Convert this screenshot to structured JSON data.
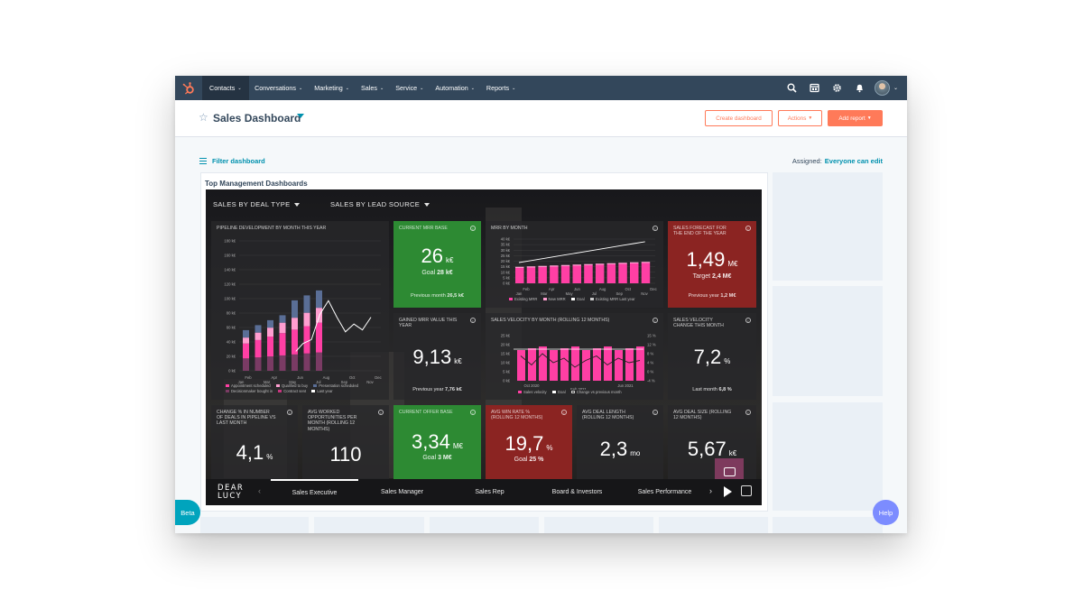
{
  "topnav": {
    "items": [
      {
        "label": "Contacts"
      },
      {
        "label": "Conversations"
      },
      {
        "label": "Marketing"
      },
      {
        "label": "Sales"
      },
      {
        "label": "Service"
      },
      {
        "label": "Automation"
      },
      {
        "label": "Reports"
      }
    ],
    "icons": [
      "search-icon",
      "marketplace-icon",
      "settings-icon",
      "notifications-icon"
    ]
  },
  "header": {
    "title": "Sales Dashboard",
    "create_dashboard": "Create dashboard",
    "actions": "Actions",
    "add_report": "Add report"
  },
  "filter": {
    "label": "Filter dashboard",
    "assigned_label": "Assigned:",
    "assigned_value": "Everyone can edit"
  },
  "panel": {
    "title": "Top Management Dashboards"
  },
  "embed": {
    "dropdown1": "SALES BY DEAL TYPE",
    "dropdown2": "SALES BY LEAD SOURCE",
    "colors": {
      "pink": "#ff3fa4",
      "green": "#2d8a33",
      "red": "#8b2422",
      "blue": "#5a6e96"
    },
    "tiles": {
      "pipeline": {
        "label": "PIPELINE DEVELOPMENT BY MONTH THIS YEAR",
        "y_ticks": [
          "180 k€",
          "160 k€",
          "140 k€",
          "120 k€",
          "100 k€",
          "80 k€",
          "60 k€",
          "40 k€",
          "20 k€",
          "0 k€"
        ],
        "x_ticks": [
          "Feb",
          "Apr",
          "Jun",
          "Aug",
          "Oct",
          "Dec"
        ],
        "x_ticks2": [
          "Jan",
          "Mar",
          "May",
          "Jul",
          "Sep",
          "Nov"
        ],
        "legend": [
          "Appointment scheduled",
          "Qualified to buy",
          "Presentation scheduled",
          "Decisionmaker bought in",
          "Contract sent",
          "Last year"
        ]
      },
      "current_mrr": {
        "label": "CURRENT MRR BASE",
        "value": "26",
        "unit": "k€",
        "goal_label": "Goal",
        "goal": "28 k€",
        "foot_label": "Previous month",
        "foot": "26,5 k€"
      },
      "mrr_by_month": {
        "label": "MRR BY MONTH",
        "y_ticks": [
          "40 k€",
          "35 k€",
          "30 k€",
          "25 k€",
          "20 k€",
          "15 k€",
          "10 k€",
          "5 k€",
          "0 k€"
        ],
        "x_ticks": [
          "Feb",
          "Apr",
          "Jun",
          "Aug",
          "Oct",
          "Dec"
        ],
        "x_ticks2": [
          "Jan",
          "Mar",
          "May",
          "Jul",
          "Sep",
          "Nov"
        ],
        "legend": [
          "Existing MRR",
          "New MRR",
          "Goal",
          "Existing MRR Last year"
        ]
      },
      "forecast": {
        "label": "SALES FORECAST FOR THE END OF THE YEAR",
        "value": "1,49",
        "unit": "M€",
        "goal_label": "Target",
        "goal": "2,4 M€",
        "foot_label": "Previous year",
        "foot": "1,2 M€"
      },
      "gained_mrr": {
        "label": "GAINED MRR VALUE THIS YEAR",
        "value": "9,13",
        "unit": "k€",
        "foot_label": "Previous year",
        "foot": "7,76 k€"
      },
      "velocity": {
        "label": "SALES VELOCITY BY MONTH (ROLLING 12 MONTHS)",
        "y_ticks": [
          "25 k€",
          "20 k€",
          "15 k€",
          "10 k€",
          "5 k€",
          "0 k€"
        ],
        "y2_ticks": [
          "15 %",
          "12 %",
          "8 %",
          "4 %",
          "0 %",
          "-4 %"
        ],
        "x_ticks": [
          "Oct 2020",
          "Jun 2021"
        ],
        "x_ticks2": [
          "Feb 2021"
        ],
        "legend": [
          "Sales velocity",
          "Goal",
          "Change vs previous month"
        ]
      },
      "velocity_change": {
        "label": "SALES VELOCITY CHANGE THIS MONTH",
        "value": "7,2",
        "unit": "%",
        "foot_label": "Last month",
        "foot": "6,8 %"
      },
      "deals_change": {
        "label": "CHANGE % IN NUMBER OF DEALS IN PIPELINE VS LAST MONTH",
        "value": "4,1",
        "unit": "%"
      },
      "avg_worked": {
        "label": "AVG WORKED OPPORTUNITIES PER MONTH (ROLLING 12 MONTHS)",
        "value": "110"
      },
      "current_offer": {
        "label": "CURRENT OFFER BASE",
        "value": "3,34",
        "unit": "M€",
        "goal_label": "Goal",
        "goal": "3 M€"
      },
      "win_rate": {
        "label": "AVG WIN RATE % (ROLLING 12 MONTHS)",
        "value": "19,7",
        "unit": "%",
        "goal_label": "Goal",
        "goal": "25 %"
      },
      "deal_length": {
        "label": "AVG DEAL LENGTH (ROLLING 12 MONTHS)",
        "value": "2,3",
        "unit": "mo"
      },
      "deal_size": {
        "label": "AVG DEAL SIZE (ROLLING 12 MONTHS)",
        "value": "5,67",
        "unit": "k€"
      }
    },
    "brand_line1": "DEAR",
    "brand_line2": "LUCY",
    "bottom_tabs": [
      "Sales Executive",
      "Sales Manager",
      "Sales Rep",
      "Board & Investors",
      "Sales Performance"
    ]
  },
  "beta": "Beta",
  "help": "Help"
}
